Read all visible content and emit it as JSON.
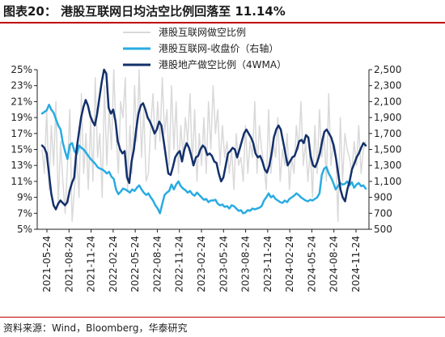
{
  "title": "图表20：  港股互联网日均沽空比例回落至 11.14%",
  "source": "资料来源：Wind，Bloomberg，华泰研究",
  "chart_data": {
    "type": "line",
    "legend_position": "top-center",
    "grid": false,
    "y_left": {
      "min": 5,
      "max": 25,
      "step": 2,
      "format": "percent"
    },
    "y_right": {
      "min": 500,
      "max": 2500,
      "step": 200
    },
    "x_ticks": [
      "2021-05-24",
      "2021-08-24",
      "2021-11-24",
      "2022-02-24",
      "2022-05-24",
      "2022-08-24",
      "2022-11-24",
      "2023-02-24",
      "2023-05-24",
      "2023-08-24",
      "2023-11-24",
      "2024-02-24",
      "2024-05-24",
      "2024-08-24",
      "2024-11-24"
    ],
    "series": [
      {
        "name": "港股互联网做空比例",
        "axis": "left",
        "color": "#d9d9d9",
        "width": 1.5,
        "values": [
          15,
          12,
          20,
          10,
          18,
          13,
          21,
          8,
          16,
          11,
          7,
          13,
          20,
          6,
          10,
          14,
          9,
          22,
          12,
          17,
          10,
          19,
          11,
          24,
          14,
          17,
          9,
          23,
          13,
          20,
          15,
          25,
          17,
          12,
          21,
          19,
          24,
          10,
          18,
          12,
          23,
          16,
          25,
          14,
          20,
          11,
          12,
          18,
          22,
          15,
          21,
          16,
          24,
          17,
          20,
          13,
          23,
          15,
          21,
          12,
          18,
          14,
          19,
          16,
          22,
          13,
          20,
          11,
          17,
          13,
          19,
          12,
          21,
          15,
          23,
          17,
          20,
          13,
          18,
          14,
          16,
          12,
          15,
          10,
          17,
          13,
          14,
          11,
          18,
          12,
          16,
          14,
          21,
          12,
          18,
          15,
          13,
          10,
          20,
          12,
          16,
          14,
          19,
          11,
          15,
          13,
          17,
          10,
          14,
          12,
          18,
          15,
          21,
          13,
          16,
          11,
          15,
          9,
          18,
          12,
          20,
          14,
          17,
          11,
          22,
          13,
          16,
          15,
          6,
          19,
          11,
          17,
          15,
          14,
          12,
          16,
          13,
          18,
          12,
          15,
          16
        ]
      },
      {
        "name": "港股互联网-收盘价（右轴）",
        "axis": "right",
        "color": "#29abe2",
        "width": 2.5,
        "values": [
          1950,
          1970,
          1990,
          2060,
          2000,
          1960,
          1880,
          1800,
          1750,
          1580,
          1470,
          1380,
          1560,
          1580,
          1480,
          1440,
          1550,
          1520,
          1500,
          1460,
          1420,
          1380,
          1350,
          1320,
          1280,
          1260,
          1250,
          1230,
          1200,
          1220,
          1160,
          1130,
          1000,
          940,
          970,
          1010,
          1000,
          980,
          960,
          1000,
          980,
          1020,
          1050,
          1000,
          960,
          930,
          950,
          900,
          860,
          800,
          760,
          700,
          820,
          930,
          960,
          980,
          1060,
          1000,
          1060,
          1100,
          1040,
          1010,
          990,
          960,
          980,
          940,
          920,
          960,
          930,
          900,
          870,
          880,
          840,
          860,
          860,
          870,
          820,
          800,
          810,
          780,
          790,
          760,
          800,
          790,
          760,
          730,
          740,
          700,
          710,
          740,
          730,
          760,
          750,
          760,
          770,
          790,
          860,
          900,
          950,
          900,
          920,
          880,
          860,
          840,
          830,
          860,
          840,
          880,
          900,
          920,
          950,
          930,
          900,
          880,
          860,
          850,
          870,
          860,
          880,
          900,
          950,
          1180,
          1260,
          1280,
          1200,
          1150,
          1080,
          1000,
          1040,
          1080,
          1060,
          1070,
          1100,
          1050,
          1090,
          1020,
          1060,
          1080,
          1040,
          1050,
          1010
        ]
      },
      {
        "name": "港股地产做空比例（4WMA）",
        "axis": "left",
        "color": "#13306b",
        "width": 2.5,
        "values": [
          15.5,
          15.2,
          14.5,
          12,
          9.5,
          8,
          7.5,
          8.2,
          8.6,
          8.3,
          8,
          8.4,
          9.8,
          10.8,
          11.5,
          15,
          17,
          19,
          20.3,
          21.2,
          20.5,
          19.2,
          18.5,
          18,
          19.5,
          21.5,
          23.5,
          25,
          24.5,
          20.2,
          19.5,
          20,
          18.5,
          16,
          15,
          14.5,
          14.8,
          11.5,
          10.8,
          13.5,
          15,
          17.5,
          19.5,
          20.5,
          20.8,
          20,
          19,
          18.5,
          17.8,
          17,
          17.5,
          18.5,
          18,
          16,
          14,
          12,
          11.8,
          12.8,
          14,
          14.5,
          14.8,
          13.5,
          15,
          15.8,
          15.2,
          14.2,
          13,
          14,
          14.2,
          15,
          15.5,
          15.2,
          14.3,
          14.5,
          14.2,
          13.5,
          13.3,
          12,
          11,
          11.5,
          13,
          14.5,
          14.8,
          15.2,
          15,
          14,
          15,
          16,
          17,
          17.5,
          17,
          16.5,
          15.8,
          14.5,
          14,
          14.2,
          13.5,
          12.5,
          12.1,
          13,
          14.5,
          16.5,
          17.5,
          18,
          17.5,
          16,
          14.5,
          13,
          13.5,
          14,
          14.2,
          15,
          16,
          16.2,
          15.8,
          16.8,
          16.5,
          14.2,
          13,
          12.8,
          13.5,
          14.5,
          16,
          17.2,
          17.5,
          17,
          16.5,
          15.5,
          14,
          12,
          10,
          9,
          8.5,
          10,
          11,
          12.5,
          13.2,
          14,
          14.5,
          15.2,
          15.8,
          15.5
        ]
      }
    ]
  }
}
